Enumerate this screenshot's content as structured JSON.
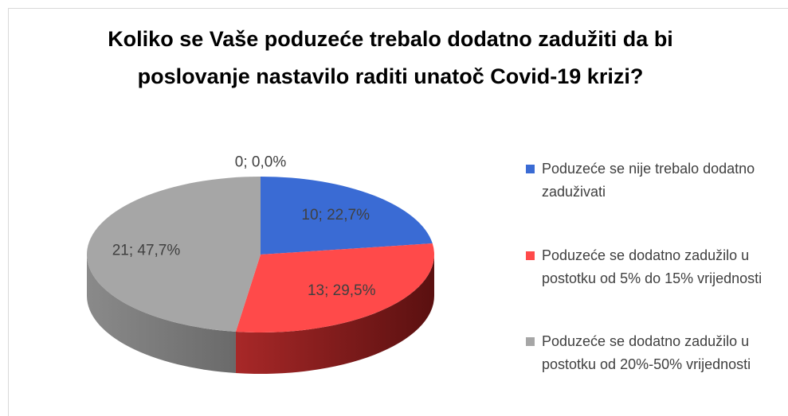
{
  "chart_data": {
    "type": "pie3d",
    "title": "Koliko se Vaše poduzeće trebalo dodatno zadužiti da bi poslovanje nastavilo raditi unatoč Covid-19 krizi?",
    "categories": [
      "Poduzeće se nije trebalo dodatno zaduživati",
      "Poduzeće se dodatno zadužilo u postotku od 5% do 15% vrijednosti",
      "Poduzeće se dodatno zadužilo u postotku od 20%-50% vrijednosti",
      null
    ],
    "values": [
      10,
      13,
      21,
      0
    ],
    "value_labels": [
      "10; 22,7%",
      "13; 29,5%",
      "21; 47,7%",
      "0; 0,0%"
    ],
    "colors": [
      "#3a6bd4",
      "#ff4a4a",
      "#a6a6a6",
      null
    ],
    "legend": "right"
  }
}
